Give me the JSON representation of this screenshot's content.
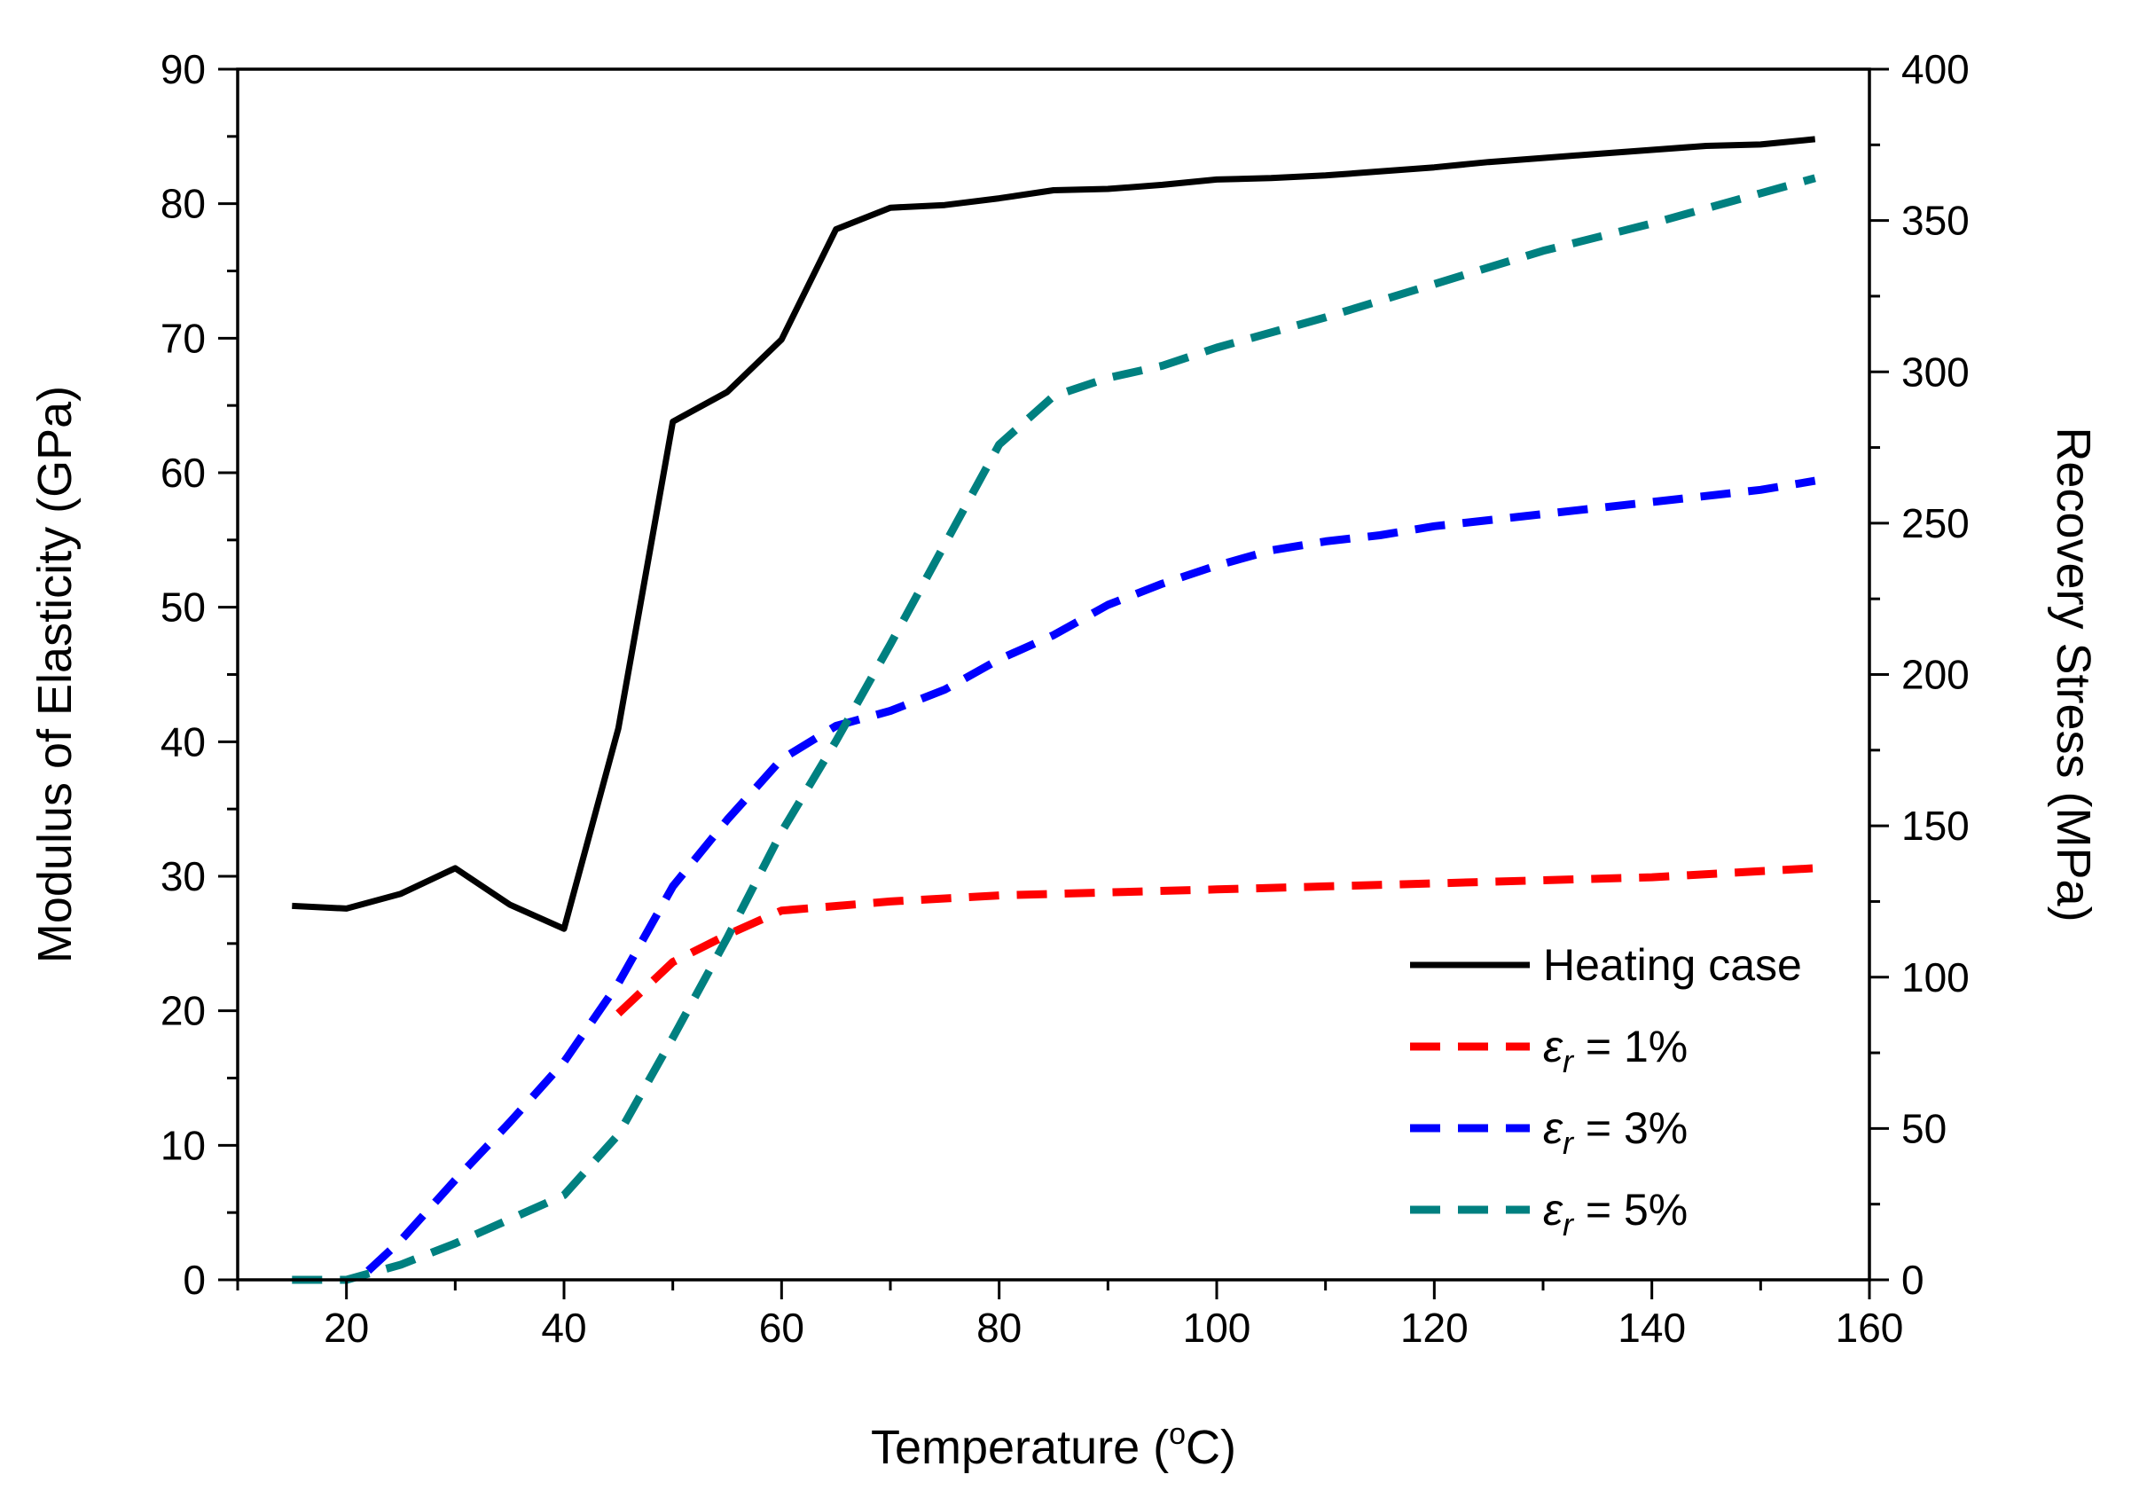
{
  "chart_data": {
    "type": "line",
    "xlabel": "Temperature (°C)",
    "xlabel_parts": {
      "main": "Temperature (",
      "sup": "o",
      "end": "C)"
    },
    "ylabel": "Modulus of Elasticity (GPa)",
    "y2label": "Recovery Stress (MPa)",
    "xlim": [
      10,
      160
    ],
    "ylim": [
      0,
      90
    ],
    "y2lim": [
      0,
      400
    ],
    "x_ticks": [
      20,
      40,
      60,
      80,
      100,
      120,
      140,
      160
    ],
    "y_ticks": [
      0,
      10,
      20,
      30,
      40,
      50,
      60,
      70,
      80,
      90
    ],
    "y2_ticks": [
      0,
      50,
      100,
      150,
      200,
      250,
      300,
      350,
      400
    ],
    "legend_position": "bottom-right",
    "series": [
      {
        "name": "Heating case",
        "axis": "left",
        "color": "#000000",
        "style": "solid",
        "points": [
          [
            15,
            27.8
          ],
          [
            20,
            27.6
          ],
          [
            25,
            28.7
          ],
          [
            30,
            30.6
          ],
          [
            35,
            27.9
          ],
          [
            40,
            26.1
          ],
          [
            45,
            41.0
          ],
          [
            50,
            63.8
          ],
          [
            55,
            66.0
          ],
          [
            60,
            69.9
          ],
          [
            65,
            78.1
          ],
          [
            70,
            79.7
          ],
          [
            75,
            79.9
          ],
          [
            80,
            80.4
          ],
          [
            85,
            81.0
          ],
          [
            90,
            81.1
          ],
          [
            95,
            81.4
          ],
          [
            100,
            81.8
          ],
          [
            105,
            81.9
          ],
          [
            110,
            82.1
          ],
          [
            115,
            82.4
          ],
          [
            120,
            82.7
          ],
          [
            125,
            83.1
          ],
          [
            130,
            83.4
          ],
          [
            135,
            83.7
          ],
          [
            140,
            84.0
          ],
          [
            145,
            84.3
          ],
          [
            150,
            84.4
          ],
          [
            155,
            84.8
          ]
        ]
      },
      {
        "name_prefix": "ε",
        "name_sub": "r",
        "name_suffix": " = 1%",
        "axis": "right",
        "color": "#ff0000",
        "style": "dashed",
        "points": [
          [
            45,
            88
          ],
          [
            50,
            105
          ],
          [
            55,
            114
          ],
          [
            60,
            122
          ],
          [
            70,
            125
          ],
          [
            80,
            127
          ],
          [
            90,
            128
          ],
          [
            100,
            129
          ],
          [
            110,
            130
          ],
          [
            120,
            131
          ],
          [
            130,
            132
          ],
          [
            140,
            133
          ],
          [
            150,
            135
          ],
          [
            155,
            136
          ]
        ]
      },
      {
        "name_prefix": "ε",
        "name_sub": "r",
        "name_suffix": " = 3%",
        "axis": "right",
        "color": "#0000ff",
        "style": "dashed",
        "points": [
          [
            22,
            3
          ],
          [
            25,
            13
          ],
          [
            30,
            33
          ],
          [
            35,
            52
          ],
          [
            40,
            72
          ],
          [
            45,
            98
          ],
          [
            50,
            130
          ],
          [
            55,
            152
          ],
          [
            60,
            172
          ],
          [
            65,
            183
          ],
          [
            70,
            188
          ],
          [
            75,
            195
          ],
          [
            80,
            205
          ],
          [
            85,
            213
          ],
          [
            90,
            223
          ],
          [
            95,
            230
          ],
          [
            100,
            236
          ],
          [
            105,
            241
          ],
          [
            110,
            244
          ],
          [
            115,
            246
          ],
          [
            120,
            249
          ],
          [
            125,
            251
          ],
          [
            130,
            253
          ],
          [
            135,
            255
          ],
          [
            140,
            257
          ],
          [
            145,
            259
          ],
          [
            150,
            261
          ],
          [
            155,
            264
          ]
        ]
      },
      {
        "name_prefix": "ε",
        "name_sub": "r",
        "name_suffix": " = 5%",
        "axis": "right",
        "color": "#008080",
        "style": "dashed",
        "points": [
          [
            15,
            0
          ],
          [
            20,
            0
          ],
          [
            25,
            5
          ],
          [
            30,
            12
          ],
          [
            35,
            20
          ],
          [
            40,
            28
          ],
          [
            45,
            48
          ],
          [
            50,
            80
          ],
          [
            55,
            113
          ],
          [
            60,
            148
          ],
          [
            65,
            178
          ],
          [
            70,
            210
          ],
          [
            75,
            243
          ],
          [
            80,
            276
          ],
          [
            85,
            292
          ],
          [
            90,
            298
          ],
          [
            95,
            302
          ],
          [
            100,
            308
          ],
          [
            110,
            318
          ],
          [
            120,
            329
          ],
          [
            130,
            340
          ],
          [
            140,
            349
          ],
          [
            150,
            359
          ],
          [
            155,
            364
          ]
        ]
      }
    ]
  }
}
